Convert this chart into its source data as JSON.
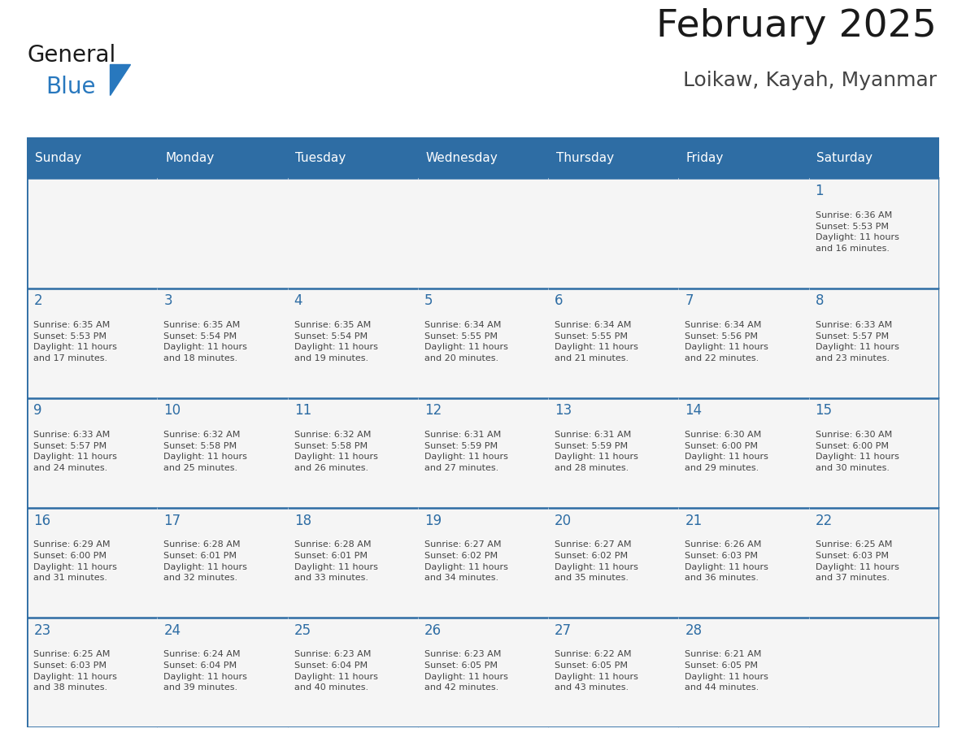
{
  "title": "February 2025",
  "subtitle": "Loikaw, Kayah, Myanmar",
  "days_of_week": [
    "Sunday",
    "Monday",
    "Tuesday",
    "Wednesday",
    "Thursday",
    "Friday",
    "Saturday"
  ],
  "header_bg": "#2E6DA4",
  "header_text": "#FFFFFF",
  "cell_bg": "#F5F5F5",
  "cell_border_color": "#CCCCCC",
  "day_number_color": "#2E6DA4",
  "cell_text_color": "#444444",
  "title_color": "#1a1a1a",
  "subtitle_color": "#444444",
  "logo_general_color": "#1a1a1a",
  "logo_blue_color": "#2878BE",
  "calendar_data": [
    [
      null,
      null,
      null,
      null,
      null,
      null,
      {
        "day": 1,
        "sunrise": "6:36 AM",
        "sunset": "5:53 PM",
        "daylight_hours": 11,
        "daylight_minutes": 16
      }
    ],
    [
      {
        "day": 2,
        "sunrise": "6:35 AM",
        "sunset": "5:53 PM",
        "daylight_hours": 11,
        "daylight_minutes": 17
      },
      {
        "day": 3,
        "sunrise": "6:35 AM",
        "sunset": "5:54 PM",
        "daylight_hours": 11,
        "daylight_minutes": 18
      },
      {
        "day": 4,
        "sunrise": "6:35 AM",
        "sunset": "5:54 PM",
        "daylight_hours": 11,
        "daylight_minutes": 19
      },
      {
        "day": 5,
        "sunrise": "6:34 AM",
        "sunset": "5:55 PM",
        "daylight_hours": 11,
        "daylight_minutes": 20
      },
      {
        "day": 6,
        "sunrise": "6:34 AM",
        "sunset": "5:55 PM",
        "daylight_hours": 11,
        "daylight_minutes": 21
      },
      {
        "day": 7,
        "sunrise": "6:34 AM",
        "sunset": "5:56 PM",
        "daylight_hours": 11,
        "daylight_minutes": 22
      },
      {
        "day": 8,
        "sunrise": "6:33 AM",
        "sunset": "5:57 PM",
        "daylight_hours": 11,
        "daylight_minutes": 23
      }
    ],
    [
      {
        "day": 9,
        "sunrise": "6:33 AM",
        "sunset": "5:57 PM",
        "daylight_hours": 11,
        "daylight_minutes": 24
      },
      {
        "day": 10,
        "sunrise": "6:32 AM",
        "sunset": "5:58 PM",
        "daylight_hours": 11,
        "daylight_minutes": 25
      },
      {
        "day": 11,
        "sunrise": "6:32 AM",
        "sunset": "5:58 PM",
        "daylight_hours": 11,
        "daylight_minutes": 26
      },
      {
        "day": 12,
        "sunrise": "6:31 AM",
        "sunset": "5:59 PM",
        "daylight_hours": 11,
        "daylight_minutes": 27
      },
      {
        "day": 13,
        "sunrise": "6:31 AM",
        "sunset": "5:59 PM",
        "daylight_hours": 11,
        "daylight_minutes": 28
      },
      {
        "day": 14,
        "sunrise": "6:30 AM",
        "sunset": "6:00 PM",
        "daylight_hours": 11,
        "daylight_minutes": 29
      },
      {
        "day": 15,
        "sunrise": "6:30 AM",
        "sunset": "6:00 PM",
        "daylight_hours": 11,
        "daylight_minutes": 30
      }
    ],
    [
      {
        "day": 16,
        "sunrise": "6:29 AM",
        "sunset": "6:00 PM",
        "daylight_hours": 11,
        "daylight_minutes": 31
      },
      {
        "day": 17,
        "sunrise": "6:28 AM",
        "sunset": "6:01 PM",
        "daylight_hours": 11,
        "daylight_minutes": 32
      },
      {
        "day": 18,
        "sunrise": "6:28 AM",
        "sunset": "6:01 PM",
        "daylight_hours": 11,
        "daylight_minutes": 33
      },
      {
        "day": 19,
        "sunrise": "6:27 AM",
        "sunset": "6:02 PM",
        "daylight_hours": 11,
        "daylight_minutes": 34
      },
      {
        "day": 20,
        "sunrise": "6:27 AM",
        "sunset": "6:02 PM",
        "daylight_hours": 11,
        "daylight_minutes": 35
      },
      {
        "day": 21,
        "sunrise": "6:26 AM",
        "sunset": "6:03 PM",
        "daylight_hours": 11,
        "daylight_minutes": 36
      },
      {
        "day": 22,
        "sunrise": "6:25 AM",
        "sunset": "6:03 PM",
        "daylight_hours": 11,
        "daylight_minutes": 37
      }
    ],
    [
      {
        "day": 23,
        "sunrise": "6:25 AM",
        "sunset": "6:03 PM",
        "daylight_hours": 11,
        "daylight_minutes": 38
      },
      {
        "day": 24,
        "sunrise": "6:24 AM",
        "sunset": "6:04 PM",
        "daylight_hours": 11,
        "daylight_minutes": 39
      },
      {
        "day": 25,
        "sunrise": "6:23 AM",
        "sunset": "6:04 PM",
        "daylight_hours": 11,
        "daylight_minutes": 40
      },
      {
        "day": 26,
        "sunrise": "6:23 AM",
        "sunset": "6:05 PM",
        "daylight_hours": 11,
        "daylight_minutes": 42
      },
      {
        "day": 27,
        "sunrise": "6:22 AM",
        "sunset": "6:05 PM",
        "daylight_hours": 11,
        "daylight_minutes": 43
      },
      {
        "day": 28,
        "sunrise": "6:21 AM",
        "sunset": "6:05 PM",
        "daylight_hours": 11,
        "daylight_minutes": 44
      },
      null
    ]
  ],
  "fig_width": 11.88,
  "fig_height": 9.18,
  "fig_dpi": 100
}
